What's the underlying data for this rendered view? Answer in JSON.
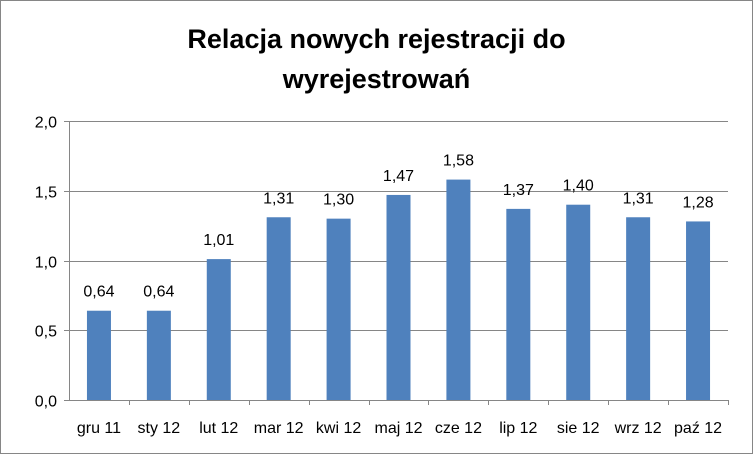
{
  "chart_data": {
    "type": "bar",
    "title": "Relacja nowych rejestracji do wyrejestrowań",
    "title_lines": [
      "Relacja nowych rejestracji do",
      "wyrejestrowań"
    ],
    "categories": [
      "gru 11",
      "sty 12",
      "lut 12",
      "mar 12",
      "kwi 12",
      "maj 12",
      "cze 12",
      "lip 12",
      "sie 12",
      "wrz 12",
      "paź 12"
    ],
    "values": [
      0.64,
      0.64,
      1.01,
      1.31,
      1.3,
      1.47,
      1.58,
      1.37,
      1.4,
      1.31,
      1.28
    ],
    "data_labels": [
      "0,64",
      "0,64",
      "1,01",
      "1,31",
      "1,30",
      "1,47",
      "1,58",
      "1,37",
      "1,40",
      "1,31",
      "1,28"
    ],
    "y_ticks": [
      0.0,
      0.5,
      1.0,
      1.5,
      2.0
    ],
    "y_tick_labels": [
      "0,0",
      "0,5",
      "1,0",
      "1,5",
      "2,0"
    ],
    "ylim": [
      0,
      2.0
    ],
    "xlabel": "",
    "ylabel": "",
    "grid": true,
    "legend": "none",
    "colors": {
      "bar": "#4f81bd",
      "grid": "#868686",
      "axis": "#868686",
      "border": "#868686"
    }
  }
}
